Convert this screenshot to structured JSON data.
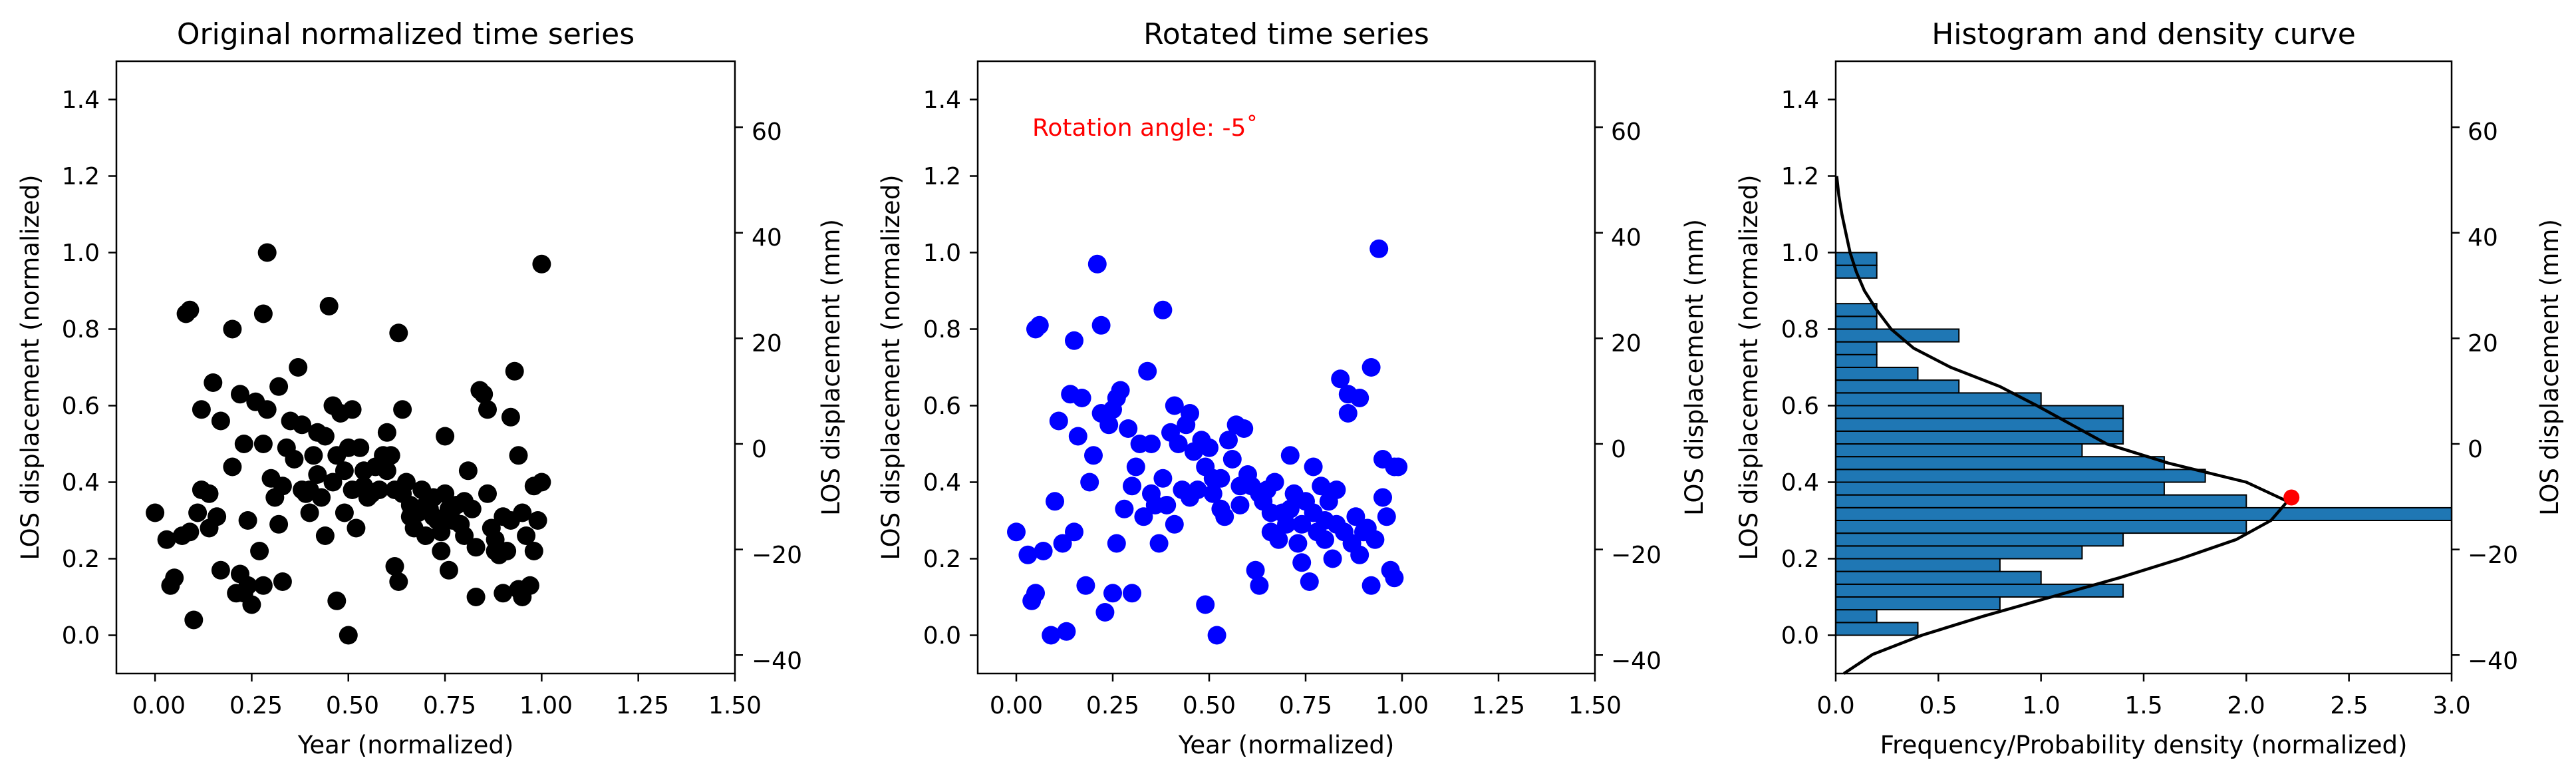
{
  "chart_data": [
    {
      "type": "scatter",
      "title": "Original normalized time series",
      "xlabel": "Year (normalized)",
      "ylabel": "LOS displacement (normalized)",
      "ylabel_right": "LOS displacement (mm)",
      "xlim": [
        -0.1,
        1.5
      ],
      "ylim": [
        -0.1,
        1.5
      ],
      "xticks": [
        "0.00",
        "0.25",
        "0.50",
        "0.75",
        "1.00",
        "1.25",
        "1.50"
      ],
      "yticks": [
        "0.0",
        "0.2",
        "0.4",
        "0.6",
        "0.8",
        "1.0",
        "1.2",
        "1.4"
      ],
      "y2lim": [
        -43.5,
        72.5
      ],
      "y2ticks": [
        "−40",
        "−20",
        "0",
        "20",
        "40",
        "60"
      ],
      "grid": false,
      "marker_color": "#000000",
      "points": [
        [
          0.0,
          0.32
        ],
        [
          0.03,
          0.25
        ],
        [
          0.04,
          0.13
        ],
        [
          0.05,
          0.15
        ],
        [
          0.07,
          0.26
        ],
        [
          0.08,
          0.84
        ],
        [
          0.09,
          0.85
        ],
        [
          0.09,
          0.27
        ],
        [
          0.1,
          0.04
        ],
        [
          0.11,
          0.32
        ],
        [
          0.12,
          0.38
        ],
        [
          0.12,
          0.59
        ],
        [
          0.14,
          0.28
        ],
        [
          0.14,
          0.37
        ],
        [
          0.15,
          0.66
        ],
        [
          0.16,
          0.31
        ],
        [
          0.17,
          0.56
        ],
        [
          0.17,
          0.17
        ],
        [
          0.2,
          0.8
        ],
        [
          0.2,
          0.44
        ],
        [
          0.21,
          0.11
        ],
        [
          0.22,
          0.63
        ],
        [
          0.22,
          0.16
        ],
        [
          0.23,
          0.5
        ],
        [
          0.23,
          0.11
        ],
        [
          0.24,
          0.3
        ],
        [
          0.24,
          0.13
        ],
        [
          0.25,
          0.08
        ],
        [
          0.26,
          0.61
        ],
        [
          0.27,
          0.22
        ],
        [
          0.28,
          0.84
        ],
        [
          0.28,
          0.5
        ],
        [
          0.28,
          0.13
        ],
        [
          0.29,
          0.59
        ],
        [
          0.29,
          1.0
        ],
        [
          0.3,
          0.41
        ],
        [
          0.31,
          0.36
        ],
        [
          0.32,
          0.65
        ],
        [
          0.32,
          0.29
        ],
        [
          0.33,
          0.14
        ],
        [
          0.33,
          0.39
        ],
        [
          0.34,
          0.49
        ],
        [
          0.35,
          0.56
        ],
        [
          0.36,
          0.46
        ],
        [
          0.37,
          0.7
        ],
        [
          0.38,
          0.38
        ],
        [
          0.38,
          0.55
        ],
        [
          0.39,
          0.37
        ],
        [
          0.4,
          0.38
        ],
        [
          0.4,
          0.32
        ],
        [
          0.41,
          0.47
        ],
        [
          0.42,
          0.53
        ],
        [
          0.42,
          0.42
        ],
        [
          0.43,
          0.36
        ],
        [
          0.44,
          0.52
        ],
        [
          0.44,
          0.26
        ],
        [
          0.45,
          0.86
        ],
        [
          0.46,
          0.6
        ],
        [
          0.46,
          0.4
        ],
        [
          0.47,
          0.09
        ],
        [
          0.47,
          0.47
        ],
        [
          0.48,
          0.58
        ],
        [
          0.49,
          0.43
        ],
        [
          0.49,
          0.32
        ],
        [
          0.5,
          0.0
        ],
        [
          0.5,
          0.49
        ],
        [
          0.51,
          0.59
        ],
        [
          0.51,
          0.38
        ],
        [
          0.52,
          0.28
        ],
        [
          0.53,
          0.49
        ],
        [
          0.54,
          0.39
        ],
        [
          0.54,
          0.43
        ],
        [
          0.55,
          0.36
        ],
        [
          0.56,
          0.37
        ],
        [
          0.57,
          0.44
        ],
        [
          0.58,
          0.38
        ],
        [
          0.59,
          0.47
        ],
        [
          0.6,
          0.53
        ],
        [
          0.6,
          0.43
        ],
        [
          0.61,
          0.47
        ],
        [
          0.62,
          0.38
        ],
        [
          0.62,
          0.18
        ],
        [
          0.63,
          0.79
        ],
        [
          0.63,
          0.14
        ],
        [
          0.64,
          0.59
        ],
        [
          0.64,
          0.37
        ],
        [
          0.65,
          0.4
        ],
        [
          0.66,
          0.34
        ],
        [
          0.66,
          0.31
        ],
        [
          0.67,
          0.28
        ],
        [
          0.68,
          0.32
        ],
        [
          0.69,
          0.38
        ],
        [
          0.7,
          0.26
        ],
        [
          0.7,
          0.34
        ],
        [
          0.71,
          0.33
        ],
        [
          0.72,
          0.31
        ],
        [
          0.72,
          0.36
        ],
        [
          0.73,
          0.3
        ],
        [
          0.74,
          0.27
        ],
        [
          0.74,
          0.22
        ],
        [
          0.75,
          0.52
        ],
        [
          0.75,
          0.37
        ],
        [
          0.76,
          0.33
        ],
        [
          0.76,
          0.17
        ],
        [
          0.77,
          0.3
        ],
        [
          0.78,
          0.34
        ],
        [
          0.79,
          0.29
        ],
        [
          0.8,
          0.26
        ],
        [
          0.8,
          0.35
        ],
        [
          0.81,
          0.43
        ],
        [
          0.82,
          0.33
        ],
        [
          0.83,
          0.23
        ],
        [
          0.83,
          0.1
        ],
        [
          0.84,
          0.64
        ],
        [
          0.85,
          0.63
        ],
        [
          0.86,
          0.59
        ],
        [
          0.86,
          0.37
        ],
        [
          0.87,
          0.28
        ],
        [
          0.88,
          0.22
        ],
        [
          0.88,
          0.25
        ],
        [
          0.89,
          0.21
        ],
        [
          0.9,
          0.31
        ],
        [
          0.9,
          0.11
        ],
        [
          0.91,
          0.22
        ],
        [
          0.92,
          0.3
        ],
        [
          0.92,
          0.57
        ],
        [
          0.93,
          0.69
        ],
        [
          0.94,
          0.12
        ],
        [
          0.94,
          0.47
        ],
        [
          0.95,
          0.32
        ],
        [
          0.95,
          0.1
        ],
        [
          0.96,
          0.26
        ],
        [
          0.97,
          0.13
        ],
        [
          0.98,
          0.22
        ],
        [
          0.98,
          0.39
        ],
        [
          0.99,
          0.3
        ],
        [
          1.0,
          0.97
        ],
        [
          1.0,
          0.4
        ]
      ]
    },
    {
      "type": "scatter",
      "title": "Rotated time series",
      "xlabel": "Year (normalized)",
      "ylabel": "LOS displacement (normalized)",
      "ylabel_right": "LOS displacement (mm)",
      "annotation": "Rotation angle: -5˚",
      "xlim": [
        -0.1,
        1.5
      ],
      "ylim": [
        -0.1,
        1.5
      ],
      "xticks": [
        "0.00",
        "0.25",
        "0.50",
        "0.75",
        "1.00",
        "1.25",
        "1.50"
      ],
      "yticks": [
        "0.0",
        "0.2",
        "0.4",
        "0.6",
        "0.8",
        "1.0",
        "1.2",
        "1.4"
      ],
      "y2lim": [
        -43.5,
        72.5
      ],
      "y2ticks": [
        "−40",
        "−20",
        "0",
        "20",
        "40",
        "60"
      ],
      "grid": false,
      "marker_color": "#0000ff",
      "points": [
        [
          0.0,
          0.27
        ],
        [
          0.03,
          0.21
        ],
        [
          0.04,
          0.09
        ],
        [
          0.05,
          0.11
        ],
        [
          0.05,
          0.8
        ],
        [
          0.06,
          0.81
        ],
        [
          0.07,
          0.22
        ],
        [
          0.09,
          0.0
        ],
        [
          0.1,
          0.35
        ],
        [
          0.11,
          0.56
        ],
        [
          0.12,
          0.24
        ],
        [
          0.13,
          0.01
        ],
        [
          0.14,
          0.63
        ],
        [
          0.15,
          0.27
        ],
        [
          0.15,
          0.77
        ],
        [
          0.16,
          0.52
        ],
        [
          0.17,
          0.62
        ],
        [
          0.18,
          0.13
        ],
        [
          0.19,
          0.4
        ],
        [
          0.2,
          0.47
        ],
        [
          0.21,
          0.97
        ],
        [
          0.22,
          0.81
        ],
        [
          0.22,
          0.58
        ],
        [
          0.23,
          0.06
        ],
        [
          0.24,
          0.55
        ],
        [
          0.25,
          0.59
        ],
        [
          0.25,
          0.11
        ],
        [
          0.26,
          0.24
        ],
        [
          0.26,
          0.62
        ],
        [
          0.27,
          0.64
        ],
        [
          0.28,
          0.33
        ],
        [
          0.29,
          0.54
        ],
        [
          0.3,
          0.11
        ],
        [
          0.3,
          0.39
        ],
        [
          0.31,
          0.44
        ],
        [
          0.32,
          0.5
        ],
        [
          0.33,
          0.31
        ],
        [
          0.34,
          0.69
        ],
        [
          0.35,
          0.37
        ],
        [
          0.35,
          0.5
        ],
        [
          0.36,
          0.34
        ],
        [
          0.37,
          0.24
        ],
        [
          0.38,
          0.41
        ],
        [
          0.38,
          0.85
        ],
        [
          0.39,
          0.34
        ],
        [
          0.4,
          0.53
        ],
        [
          0.41,
          0.29
        ],
        [
          0.41,
          0.6
        ],
        [
          0.42,
          0.5
        ],
        [
          0.43,
          0.38
        ],
        [
          0.44,
          0.55
        ],
        [
          0.45,
          0.36
        ],
        [
          0.45,
          0.58
        ],
        [
          0.46,
          0.48
        ],
        [
          0.47,
          0.38
        ],
        [
          0.48,
          0.51
        ],
        [
          0.49,
          0.08
        ],
        [
          0.49,
          0.44
        ],
        [
          0.5,
          0.49
        ],
        [
          0.51,
          0.41
        ],
        [
          0.51,
          0.37
        ],
        [
          0.52,
          0.0
        ],
        [
          0.53,
          0.33
        ],
        [
          0.53,
          0.41
        ],
        [
          0.54,
          0.31
        ],
        [
          0.55,
          0.51
        ],
        [
          0.56,
          0.46
        ],
        [
          0.57,
          0.55
        ],
        [
          0.58,
          0.39
        ],
        [
          0.58,
          0.34
        ],
        [
          0.59,
          0.54
        ],
        [
          0.6,
          0.42
        ],
        [
          0.61,
          0.39
        ],
        [
          0.62,
          0.17
        ],
        [
          0.63,
          0.37
        ],
        [
          0.63,
          0.13
        ],
        [
          0.64,
          0.35
        ],
        [
          0.65,
          0.38
        ],
        [
          0.66,
          0.32
        ],
        [
          0.66,
          0.27
        ],
        [
          0.67,
          0.4
        ],
        [
          0.68,
          0.25
        ],
        [
          0.69,
          0.32
        ],
        [
          0.7,
          0.29
        ],
        [
          0.71,
          0.33
        ],
        [
          0.71,
          0.47
        ],
        [
          0.72,
          0.37
        ],
        [
          0.73,
          0.24
        ],
        [
          0.74,
          0.29
        ],
        [
          0.74,
          0.19
        ],
        [
          0.75,
          0.35
        ],
        [
          0.76,
          0.14
        ],
        [
          0.77,
          0.44
        ],
        [
          0.77,
          0.32
        ],
        [
          0.78,
          0.27
        ],
        [
          0.79,
          0.39
        ],
        [
          0.8,
          0.3
        ],
        [
          0.8,
          0.25
        ],
        [
          0.81,
          0.35
        ],
        [
          0.82,
          0.2
        ],
        [
          0.83,
          0.29
        ],
        [
          0.83,
          0.38
        ],
        [
          0.84,
          0.67
        ],
        [
          0.85,
          0.27
        ],
        [
          0.86,
          0.58
        ],
        [
          0.86,
          0.63
        ],
        [
          0.87,
          0.24
        ],
        [
          0.88,
          0.31
        ],
        [
          0.89,
          0.21
        ],
        [
          0.89,
          0.62
        ],
        [
          0.9,
          0.27
        ],
        [
          0.91,
          0.28
        ],
        [
          0.92,
          0.7
        ],
        [
          0.92,
          0.13
        ],
        [
          0.93,
          0.25
        ],
        [
          0.94,
          1.01
        ],
        [
          0.95,
          0.36
        ],
        [
          0.95,
          0.46
        ],
        [
          0.96,
          0.31
        ],
        [
          0.97,
          0.17
        ],
        [
          0.98,
          0.44
        ],
        [
          0.98,
          0.15
        ],
        [
          0.99,
          0.44
        ]
      ]
    },
    {
      "type": "bar",
      "orientation": "horizontal",
      "title": "Histogram and density curve",
      "xlabel": "Frequency/Probability density (normalized)",
      "ylabel": "LOS displacement (normalized)",
      "ylabel_right": "LOS displacement (mm)",
      "xlim": [
        0.0,
        3.0
      ],
      "ylim": [
        -0.1,
        1.5
      ],
      "xticks": [
        "0.0",
        "0.5",
        "1.0",
        "1.5",
        "2.0",
        "2.5",
        "3.0"
      ],
      "yticks": [
        "0.0",
        "0.2",
        "0.4",
        "0.6",
        "0.8",
        "1.0",
        "1.2",
        "1.4"
      ],
      "y2lim": [
        -43.5,
        72.5
      ],
      "y2ticks": [
        "−40",
        "−20",
        "0",
        "20",
        "40",
        "60"
      ],
      "grid": false,
      "bar_color": "#1f77b4",
      "bin_width": 0.0333,
      "bins": [
        {
          "y": 0.0,
          "value": 0.4
        },
        {
          "y": 0.0333,
          "value": 0.2
        },
        {
          "y": 0.0667,
          "value": 0.8
        },
        {
          "y": 0.1,
          "value": 1.4
        },
        {
          "y": 0.1333,
          "value": 1.0
        },
        {
          "y": 0.1667,
          "value": 0.8
        },
        {
          "y": 0.2,
          "value": 1.2
        },
        {
          "y": 0.2333,
          "value": 1.4
        },
        {
          "y": 0.2667,
          "value": 2.0
        },
        {
          "y": 0.3,
          "value": 3.0
        },
        {
          "y": 0.3333,
          "value": 2.0
        },
        {
          "y": 0.3667,
          "value": 1.6
        },
        {
          "y": 0.4,
          "value": 1.8
        },
        {
          "y": 0.4333,
          "value": 1.6
        },
        {
          "y": 0.4667,
          "value": 1.2
        },
        {
          "y": 0.5,
          "value": 1.4
        },
        {
          "y": 0.5333,
          "value": 1.4
        },
        {
          "y": 0.5667,
          "value": 1.4
        },
        {
          "y": 0.6,
          "value": 1.0
        },
        {
          "y": 0.6333,
          "value": 0.6
        },
        {
          "y": 0.6667,
          "value": 0.4
        },
        {
          "y": 0.7,
          "value": 0.2
        },
        {
          "y": 0.7333,
          "value": 0.2
        },
        {
          "y": 0.7667,
          "value": 0.6
        },
        {
          "y": 0.8,
          "value": 0.2
        },
        {
          "y": 0.8333,
          "value": 0.2
        },
        {
          "y": 0.9333,
          "value": 0.2
        },
        {
          "y": 0.9667,
          "value": 0.2
        }
      ],
      "density_curve": {
        "color": "#000000",
        "y": [
          -0.1,
          -0.05,
          0.0,
          0.05,
          0.1,
          0.15,
          0.2,
          0.25,
          0.3,
          0.35,
          0.4,
          0.45,
          0.5,
          0.55,
          0.6,
          0.65,
          0.7,
          0.75,
          0.8,
          0.85,
          0.9,
          0.95,
          1.0,
          1.05,
          1.1,
          1.15,
          1.2
        ],
        "x": [
          0.04,
          0.18,
          0.42,
          0.72,
          1.05,
          1.38,
          1.68,
          1.95,
          2.12,
          2.2,
          2.0,
          1.62,
          1.32,
          1.15,
          0.98,
          0.8,
          0.56,
          0.38,
          0.27,
          0.2,
          0.14,
          0.1,
          0.07,
          0.05,
          0.03,
          0.015,
          0.005
        ]
      },
      "peak_marker": {
        "x": 2.22,
        "y": 0.36,
        "color": "#ff0000"
      }
    }
  ]
}
